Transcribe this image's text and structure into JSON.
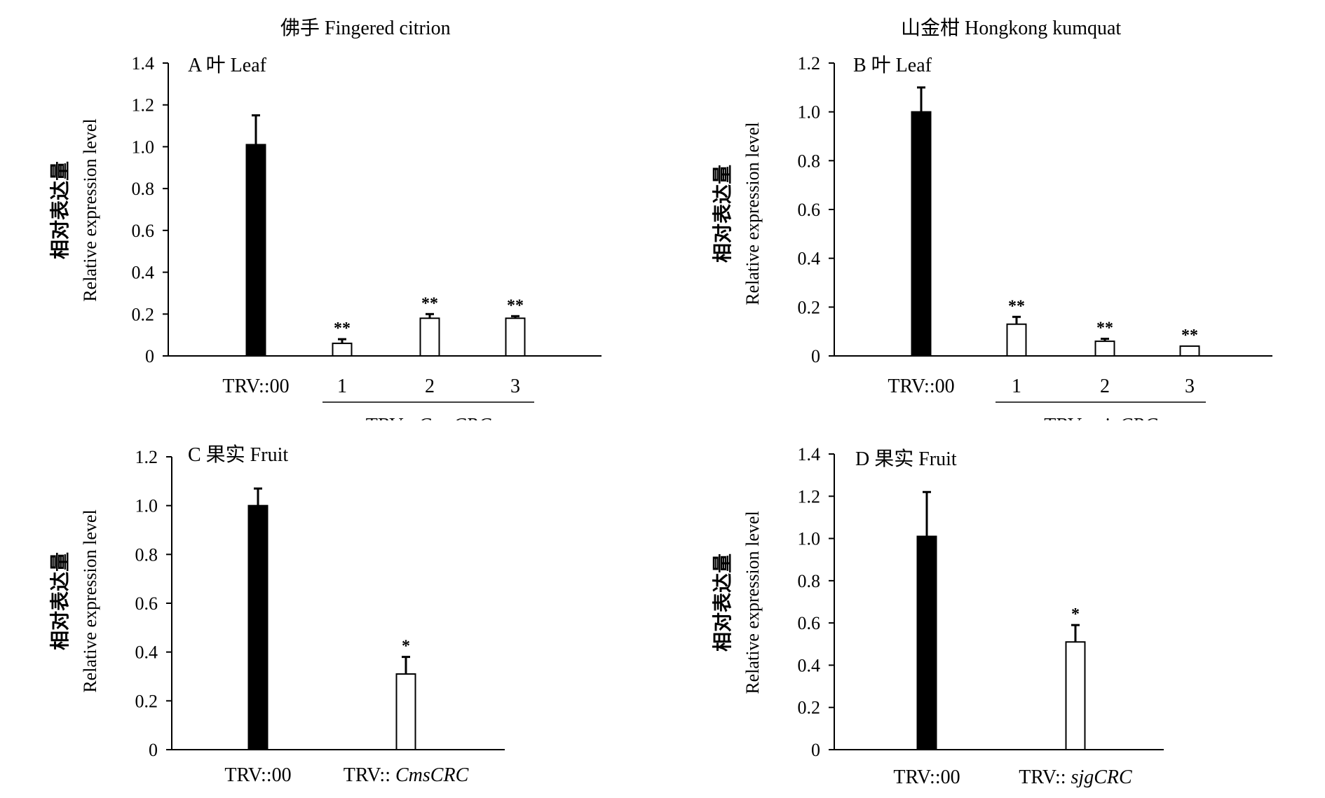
{
  "titles": {
    "left": "佛手 Fingered citrion",
    "right": "山金柑 Hongkong kumquat"
  },
  "chart_data": [
    {
      "id": "A",
      "type": "bar",
      "panel_label": "A",
      "panel_title": "叶 Leaf",
      "ylabel_cn": "相对表达量",
      "ylabel_en": "Relative expression level",
      "ylim": [
        0,
        1.4
      ],
      "yticks": [
        "0",
        "0.2",
        "0.4",
        "0.6",
        "0.8",
        "1.0",
        "1.2",
        "1.4"
      ],
      "categories": [
        "TRV::00",
        "1",
        "2",
        "3"
      ],
      "values": [
        1.01,
        0.06,
        0.18,
        0.18
      ],
      "errors": [
        0.14,
        0.02,
        0.02,
        0.01
      ],
      "significance": [
        "",
        "**",
        "**",
        "**"
      ],
      "fills": [
        "#000000",
        "#ffffff",
        "#ffffff",
        "#ffffff"
      ],
      "group_label_prefix": "TRV:: ",
      "group_label_gene": "CmsCRC"
    },
    {
      "id": "B",
      "type": "bar",
      "panel_label": "B",
      "panel_title": "叶 Leaf",
      "ylabel_cn": "相对表达量",
      "ylabel_en": "Relative expression level",
      "ylim": [
        0,
        1.2
      ],
      "yticks": [
        "0",
        "0.2",
        "0.4",
        "0.6",
        "0.8",
        "1.0",
        "1.2"
      ],
      "categories": [
        "TRV::00",
        "1",
        "2",
        "3"
      ],
      "values": [
        1.0,
        0.13,
        0.06,
        0.04
      ],
      "errors": [
        0.1,
        0.03,
        0.01,
        0.0
      ],
      "significance": [
        "",
        "**",
        "**",
        "**"
      ],
      "fills": [
        "#000000",
        "#ffffff",
        "#ffffff",
        "#ffffff"
      ],
      "group_label_prefix": "TRV:: ",
      "group_label_gene": "sjgCRC"
    },
    {
      "id": "C",
      "type": "bar",
      "panel_label": "C",
      "panel_title": "果实 Fruit",
      "ylabel_cn": "相对表达量",
      "ylabel_en": "Relative expression level",
      "ylim": [
        0,
        1.2
      ],
      "yticks": [
        "0",
        "0.2",
        "0.4",
        "0.6",
        "0.8",
        "1.0",
        "1.2"
      ],
      "categories": [
        "TRV::00",
        "TRV:: CmsCRC"
      ],
      "category_genes": [
        "",
        "CmsCRC"
      ],
      "values": [
        1.0,
        0.31
      ],
      "errors": [
        0.07,
        0.07
      ],
      "significance": [
        "",
        "*"
      ],
      "fills": [
        "#000000",
        "#ffffff"
      ]
    },
    {
      "id": "D",
      "type": "bar",
      "panel_label": "D",
      "panel_title": "果实 Fruit",
      "ylabel_cn": "相对表达量",
      "ylabel_en": "Relative expression level",
      "ylim": [
        0,
        1.4
      ],
      "yticks": [
        "0",
        "0.2",
        "0.4",
        "0.6",
        "0.8",
        "1.0",
        "1.2",
        "1.4"
      ],
      "categories": [
        "TRV::00",
        "TRV:: sjgCRC"
      ],
      "category_genes": [
        "",
        "sjgCRC"
      ],
      "values": [
        1.01,
        0.51
      ],
      "errors": [
        0.21,
        0.08
      ],
      "significance": [
        "",
        "*"
      ],
      "fills": [
        "#000000",
        "#ffffff"
      ]
    }
  ]
}
